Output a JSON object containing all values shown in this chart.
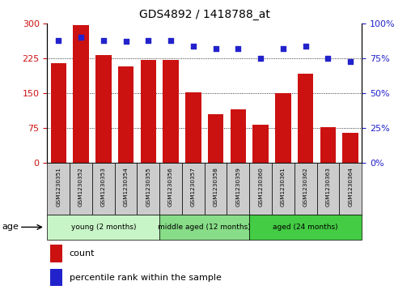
{
  "title": "GDS4892 / 1418788_at",
  "samples": [
    "GSM1230351",
    "GSM1230352",
    "GSM1230353",
    "GSM1230354",
    "GSM1230355",
    "GSM1230356",
    "GSM1230357",
    "GSM1230358",
    "GSM1230359",
    "GSM1230360",
    "GSM1230361",
    "GSM1230362",
    "GSM1230363",
    "GSM1230364"
  ],
  "counts": [
    215,
    297,
    232,
    207,
    222,
    222,
    153,
    105,
    115,
    82,
    150,
    192,
    78,
    65
  ],
  "percentiles": [
    88,
    90,
    88,
    87,
    88,
    88,
    84,
    82,
    82,
    75,
    82,
    84,
    75,
    73
  ],
  "bar_color": "#cc1111",
  "dot_color": "#2222cc",
  "ylim_left": [
    0,
    300
  ],
  "ylim_right": [
    0,
    100
  ],
  "yticks_left": [
    0,
    75,
    150,
    225,
    300
  ],
  "yticks_right": [
    0,
    25,
    50,
    75,
    100
  ],
  "groups": [
    {
      "label": "young (2 months)",
      "start": 0,
      "end": 5,
      "color": "#c8f5c8"
    },
    {
      "label": "middle aged (12 months)",
      "start": 5,
      "end": 9,
      "color": "#88dd88"
    },
    {
      "label": "aged (24 months)",
      "start": 9,
      "end": 14,
      "color": "#44cc44"
    }
  ],
  "age_label": "age",
  "legend_count_label": "count",
  "legend_percentile_label": "percentile rank within the sample",
  "tick_label_bg": "#cccccc",
  "gridline_color": "#555555",
  "gridline_values": [
    75,
    150,
    225
  ]
}
